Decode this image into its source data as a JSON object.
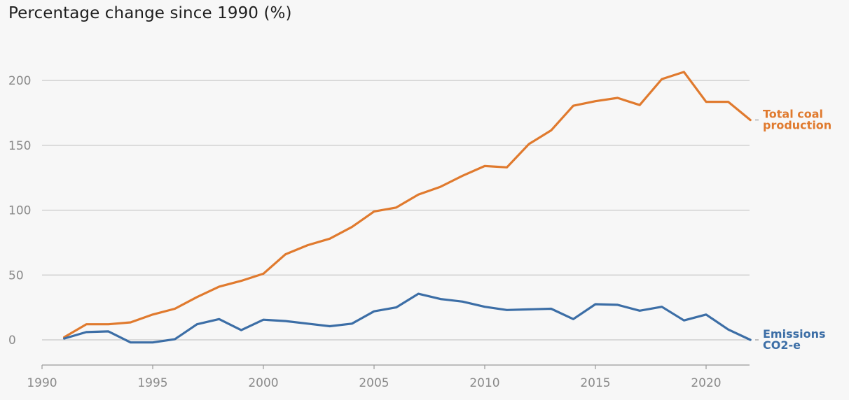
{
  "chart_data": {
    "type": "line",
    "title": "Percentage change since 1990 (%)",
    "xlabel": "",
    "ylabel": "",
    "xlim": [
      1990,
      2022
    ],
    "ylim": [
      -10,
      215
    ],
    "x_ticks": [
      1990,
      1995,
      2000,
      2005,
      2010,
      2015,
      2020
    ],
    "y_ticks": [
      0,
      50,
      100,
      150,
      200
    ],
    "grid": "horizontal",
    "legend": "direct labels at line ends",
    "x": [
      1991,
      1992,
      1993,
      1994,
      1995,
      1996,
      1997,
      1998,
      1999,
      2000,
      2001,
      2002,
      2003,
      2004,
      2005,
      2006,
      2007,
      2008,
      2009,
      2010,
      2011,
      2012,
      2013,
      2014,
      2015,
      2016,
      2017,
      2018,
      2019,
      2020,
      2021,
      2022
    ],
    "series": [
      {
        "name": "Total coal production",
        "label_lines": [
          "Total coal",
          "production"
        ],
        "color": "#e07a2e",
        "values": [
          2,
          12,
          12,
          13.5,
          19.5,
          24,
          33,
          41,
          45.5,
          51,
          66,
          73,
          78,
          87,
          99,
          102,
          112,
          118,
          126.5,
          134,
          133,
          151,
          161.5,
          180.5,
          184,
          186.5,
          181,
          201,
          206.5,
          183.5,
          183.5,
          169.5
        ]
      },
      {
        "name": "Emissions CO2-e",
        "label_lines": [
          "Emissions",
          "CO2-e"
        ],
        "color": "#3c6ea6",
        "values": [
          1,
          6,
          6.5,
          -2,
          -2,
          0.5,
          12,
          16,
          7.5,
          15.5,
          14.5,
          12.5,
          10.5,
          12.5,
          22,
          25,
          35.5,
          31.5,
          29.5,
          25.5,
          23,
          23.5,
          24,
          16,
          27.5,
          27,
          22.5,
          25.5,
          15,
          19.5,
          8,
          0
        ]
      }
    ]
  }
}
